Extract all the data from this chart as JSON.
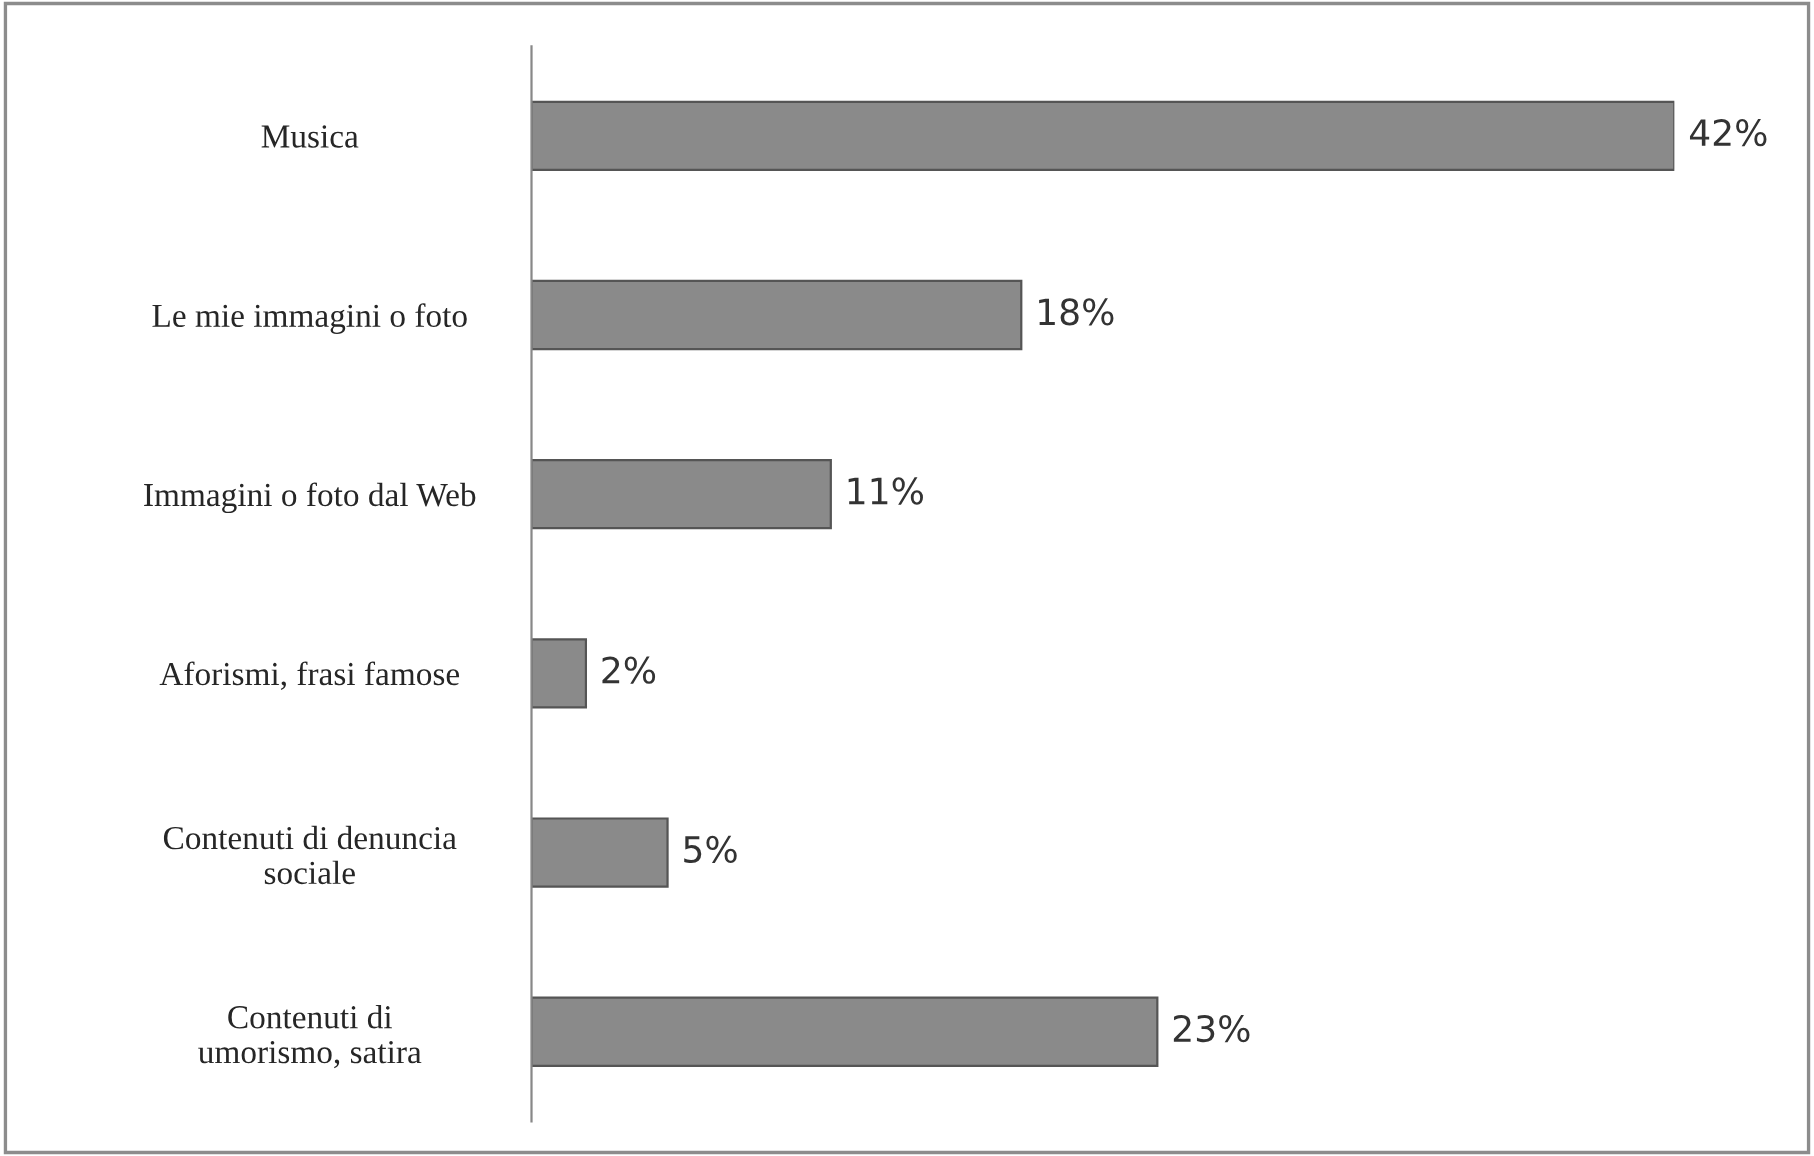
{
  "chart_data": {
    "type": "bar",
    "orientation": "horizontal",
    "categories": [
      "Musica",
      "Le mie immagini o foto",
      "Immagini o foto dal Web",
      "Aforismi, frasi famose",
      "Contenuti di denuncia\nsociale",
      "Contenuti di\numorismo, satira"
    ],
    "values": [
      42,
      18,
      11,
      2,
      5,
      23
    ],
    "value_labels": [
      "42%",
      "18%",
      "11%",
      "2%",
      "5%",
      "23%"
    ],
    "color": "#8a8a8a"
  }
}
